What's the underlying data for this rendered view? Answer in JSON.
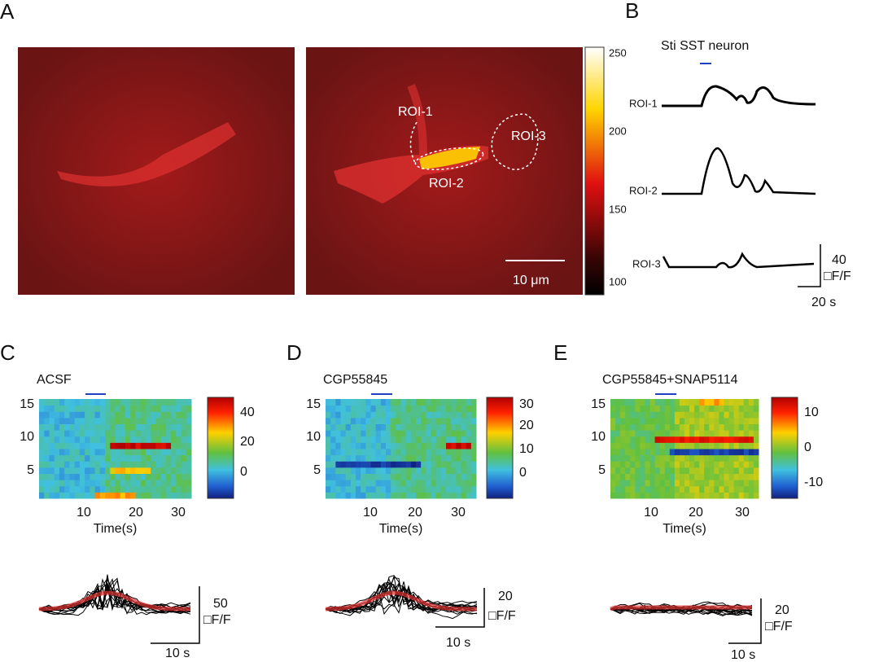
{
  "panels": {
    "A": {
      "label": "A",
      "rois": [
        "ROI-1",
        "ROI-2",
        "ROI-3"
      ],
      "scale_bar": "10 μm",
      "colorbar_ticks": [
        "250",
        "200",
        "150",
        "100"
      ]
    },
    "B": {
      "label": "B",
      "title": "Sti SST neuron",
      "traces": [
        "ROI-1",
        "ROI-2",
        "ROI-3"
      ],
      "scale_y": "40",
      "scale_unit": "□F/F",
      "scale_x": "20 s"
    },
    "C": {
      "label": "C",
      "title": "ACSF",
      "yticks": [
        "15",
        "10",
        "5"
      ],
      "xticks": [
        "10",
        "20",
        "30"
      ],
      "xlabel": "Time(s)",
      "colorbar_ticks": [
        "40",
        "20",
        "0"
      ],
      "scale_y": "50",
      "scale_unit": "□F/F",
      "scale_x": "10 s"
    },
    "D": {
      "label": "D",
      "title": "CGP55845",
      "yticks": [
        "15",
        "10",
        "5"
      ],
      "xticks": [
        "10",
        "20",
        "30"
      ],
      "xlabel": "Time(s)",
      "colorbar_ticks": [
        "30",
        "20",
        "10",
        "0"
      ],
      "scale_y": "20",
      "scale_unit": "□F/F",
      "scale_x": "10 s"
    },
    "E": {
      "label": "E",
      "title": "CGP55845+SNAP5114",
      "yticks": [
        "15",
        "10",
        "5"
      ],
      "xticks": [
        "10",
        "20",
        "30"
      ],
      "xlabel": "Time(s)",
      "colorbar_ticks": [
        "10",
        "0",
        "-10"
      ],
      "scale_y": "20",
      "scale_unit": "□F/F",
      "scale_x": "10 s"
    }
  }
}
